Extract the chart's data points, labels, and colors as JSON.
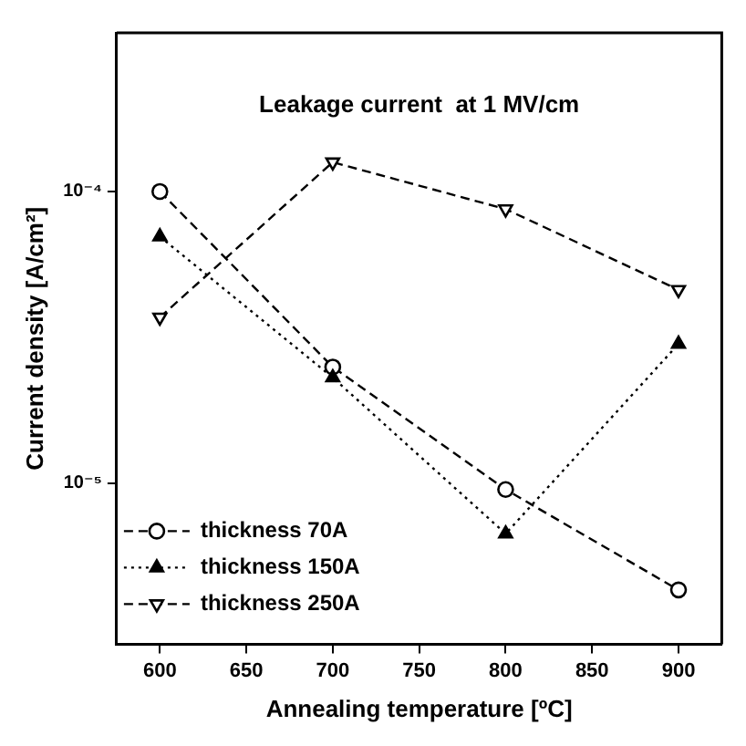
{
  "chart_data": {
    "type": "line",
    "title": "Leakage current  at 1 MV/cm",
    "xlabel": "Annealing temperature [ºC]",
    "ylabel": "Current density [A/cm²]",
    "x": [
      600,
      700,
      800,
      900
    ],
    "series": [
      {
        "name": "thickness 70A",
        "color": "#000000",
        "marker": "circle",
        "line_style": "dashed",
        "values": [
          0.0001,
          2.5e-05,
          9.5e-06,
          4.3e-06
        ]
      },
      {
        "name": "thickness 150A",
        "color": "#000000",
        "marker": "triangle",
        "line_style": "dotted",
        "values": [
          7e-05,
          2.3e-05,
          6.7e-06,
          3e-05
        ]
      },
      {
        "name": "thickness 250A",
        "color": "#000000",
        "marker": "triangle-down",
        "line_style": "dashed",
        "values": [
          3.7e-05,
          0.000126,
          8.7e-05,
          4.6e-05
        ]
      }
    ],
    "log": "y",
    "xlim": [
      575,
      925
    ],
    "xticks": [
      600,
      650,
      700,
      750,
      800,
      850,
      900
    ],
    "ylim": [
      2.8e-06,
      0.00035
    ],
    "yticks": [
      {
        "value": 1e-05,
        "label": "10⁻⁵"
      },
      {
        "value": 0.0001,
        "label": "10⁻⁴"
      }
    ],
    "legend": "bottom left",
    "grid": false
  }
}
